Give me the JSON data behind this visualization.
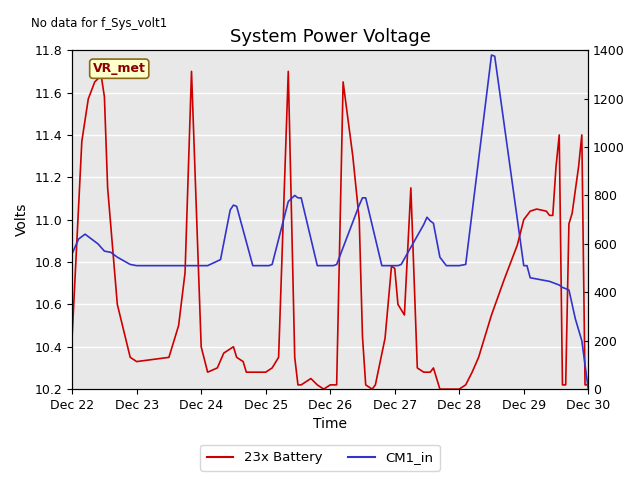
{
  "title": "System Power Voltage",
  "no_data_text": "No data for f_Sys_volt1",
  "vr_met_label": "VR_met",
  "xlabel": "Time",
  "ylabel": "Volts",
  "ylim_left": [
    10.2,
    11.8
  ],
  "ylim_right": [
    0,
    1400
  ],
  "background_color": "#e8e8e8",
  "fig_color": "#ffffff",
  "legend_labels": [
    "23x Battery",
    "CM1_in"
  ],
  "legend_colors": [
    "#cc0000",
    "#3333cc"
  ],
  "red_x": [
    0.0,
    0.15,
    0.25,
    0.35,
    0.45,
    0.5,
    0.55,
    0.7,
    0.9,
    1.0,
    1.5,
    1.65,
    1.75,
    1.85,
    2.0,
    2.1,
    2.25,
    2.35,
    2.5,
    2.55,
    2.65,
    2.7,
    3.0,
    3.1,
    3.2,
    3.35,
    3.45,
    3.5,
    3.55,
    3.7,
    3.8,
    3.9,
    4.0,
    4.1,
    4.2,
    4.35,
    4.45,
    4.5,
    4.55,
    4.65,
    4.7,
    4.85,
    4.95,
    5.0,
    5.05,
    5.15,
    5.25,
    5.35,
    5.45,
    5.5,
    5.55,
    5.6,
    5.7,
    6.0,
    6.1,
    6.2,
    6.3,
    6.5,
    6.7,
    6.9,
    7.0,
    7.1,
    7.2,
    7.35,
    7.4,
    7.45,
    7.5,
    7.55,
    7.6,
    7.65,
    7.7,
    7.75,
    7.85,
    7.9,
    7.95,
    8.0
  ],
  "red_y": [
    10.45,
    11.37,
    11.57,
    11.65,
    11.68,
    11.58,
    11.15,
    10.6,
    10.35,
    10.33,
    10.35,
    10.5,
    10.75,
    11.7,
    10.4,
    10.28,
    10.3,
    10.37,
    10.4,
    10.35,
    10.33,
    10.28,
    10.28,
    10.3,
    10.35,
    11.7,
    10.35,
    10.22,
    10.22,
    10.25,
    10.22,
    10.2,
    10.22,
    10.22,
    11.65,
    11.3,
    11.0,
    10.45,
    10.22,
    10.2,
    10.22,
    10.44,
    10.78,
    10.77,
    10.6,
    10.55,
    11.15,
    10.3,
    10.28,
    10.28,
    10.28,
    10.3,
    10.2,
    10.2,
    10.22,
    10.28,
    10.35,
    10.55,
    10.72,
    10.88,
    11.0,
    11.04,
    11.05,
    11.04,
    11.02,
    11.02,
    11.25,
    11.4,
    10.22,
    10.22,
    10.98,
    11.03,
    11.25,
    11.4,
    10.22,
    10.22
  ],
  "blue_x": [
    0.0,
    0.1,
    0.2,
    0.3,
    0.4,
    0.5,
    0.6,
    0.7,
    0.8,
    0.9,
    1.0,
    1.5,
    1.8,
    2.0,
    2.1,
    2.3,
    2.45,
    2.5,
    2.55,
    2.8,
    3.0,
    3.05,
    3.1,
    3.35,
    3.45,
    3.5,
    3.55,
    3.8,
    4.0,
    4.05,
    4.1,
    4.45,
    4.5,
    4.55,
    4.8,
    5.0,
    5.05,
    5.1,
    5.45,
    5.5,
    5.55,
    5.6,
    5.7,
    5.8,
    6.0,
    6.1,
    6.5,
    6.55,
    7.0,
    7.05,
    7.1,
    7.2,
    7.3,
    7.4,
    7.45,
    7.5,
    7.55,
    7.6,
    7.65,
    7.7,
    7.8,
    7.9,
    8.0
  ],
  "blue_y": [
    560,
    620,
    640,
    620,
    600,
    570,
    565,
    545,
    530,
    515,
    510,
    510,
    510,
    510,
    510,
    535,
    740,
    760,
    755,
    510,
    510,
    510,
    515,
    775,
    800,
    790,
    790,
    510,
    510,
    510,
    515,
    760,
    790,
    790,
    510,
    510,
    510,
    515,
    680,
    710,
    695,
    685,
    545,
    510,
    510,
    515,
    1380,
    1375,
    510,
    510,
    460,
    455,
    450,
    445,
    440,
    435,
    430,
    420,
    415,
    410,
    290,
    200,
    0
  ],
  "xlim": [
    0,
    8
  ],
  "xtick_positions": [
    0,
    1,
    2,
    3,
    4,
    5,
    6,
    7,
    8
  ],
  "xtick_labels": [
    "Dec 22",
    "Dec 23",
    "Dec 24",
    "Dec 25",
    "Dec 26",
    "Dec 27",
    "Dec 28",
    "Dec 29",
    "Dec 30"
  ],
  "ytick_left": [
    10.2,
    10.4,
    10.6,
    10.8,
    11.0,
    11.2,
    11.4,
    11.6,
    11.8
  ],
  "ytick_right": [
    0,
    200,
    400,
    600,
    800,
    1000,
    1200,
    1400
  ],
  "grid_color": "#ffffff",
  "title_fontsize": 13,
  "axis_fontsize": 10,
  "tick_fontsize": 9
}
